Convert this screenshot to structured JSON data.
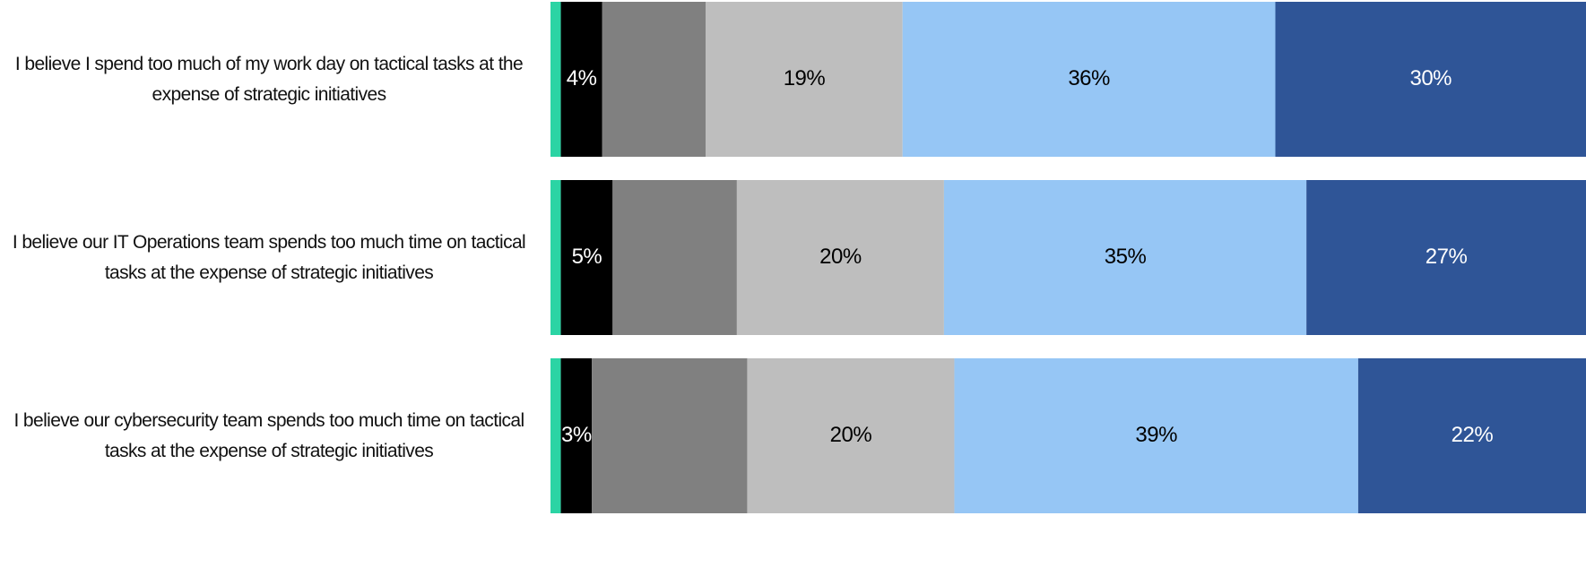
{
  "chart_data": {
    "type": "stacked-barh",
    "categories": [
      "I believe I spend too much of my work day on tactical tasks at the expense of strategic initiatives",
      "I believe our IT Operations team spends too much time on tactical tasks at the expense of strategic initiatives",
      "I believe our cybersecurity team spends too much time on tactical tasks at the expense of strategic initiatives"
    ],
    "series": [
      {
        "color": "#2bd4a4",
        "values": [
          1,
          1,
          1
        ],
        "value_labels": [
          null,
          null,
          null
        ]
      },
      {
        "color": "#000000",
        "values": [
          4,
          5,
          3
        ],
        "value_labels": [
          "4%",
          "5%",
          "3%"
        ]
      },
      {
        "color": "#808080",
        "values": [
          10,
          12,
          15
        ],
        "value_labels": [
          null,
          null,
          null
        ]
      },
      {
        "color": "#bebebe",
        "values": [
          19,
          20,
          20
        ],
        "value_labels": [
          "19%",
          "20%",
          "20%"
        ]
      },
      {
        "color": "#96c6f5",
        "values": [
          36,
          35,
          39
        ],
        "value_labels": [
          "36%",
          "35%",
          "39%"
        ]
      },
      {
        "color": "#2f5597",
        "values": [
          30,
          27,
          22
        ],
        "value_labels": [
          "30%",
          "27%",
          "22%"
        ]
      }
    ],
    "xlim": [
      0,
      100
    ]
  }
}
